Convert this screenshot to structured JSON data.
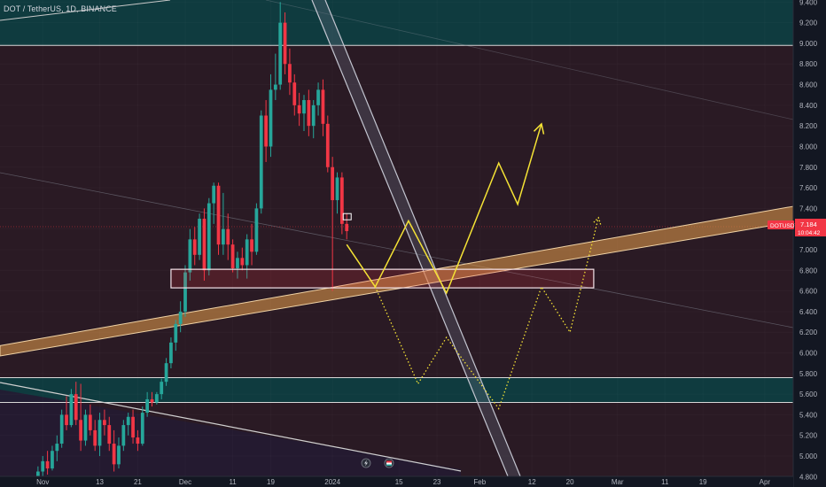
{
  "header": {
    "symbol_title": "DOT / TetherUS, 1D, BINANCE"
  },
  "price_tag": {
    "label": "DOTUSDT",
    "price": "7.184",
    "countdown": "10:04:42",
    "color": "#f23645"
  },
  "colors": {
    "background": "#131722",
    "up": "#26a69a",
    "down": "#f23645",
    "zone_teal": "#0f3b3f",
    "zone_maroon": "#2a1a24",
    "zone_purple": "#241b32",
    "trend_band": "#d9954a",
    "projection": "#f5e335"
  },
  "icons": [
    "lightning-icon",
    "flag-icon"
  ],
  "chart_data": {
    "type": "candlestick",
    "title": "DOT / TetherUS, 1D, BINANCE",
    "y_axis": {
      "position": "right",
      "range": [
        4.7,
        9.42
      ],
      "ticks": [
        "9.400",
        "9.200",
        "9.000",
        "8.800",
        "8.600",
        "8.400",
        "8.200",
        "8.000",
        "7.800",
        "7.600",
        "7.400",
        "7.200",
        "7.000",
        "6.800",
        "6.600",
        "6.400",
        "6.200",
        "6.000",
        "5.800",
        "5.600",
        "5.400",
        "5.200",
        "5.000",
        "4.800"
      ]
    },
    "x_axis": {
      "range": [
        "2023-10-23",
        "2024-04-07"
      ],
      "ticks": [
        {
          "date": "2023-11-01",
          "label": "Nov"
        },
        {
          "date": "2023-11-13",
          "label": "13"
        },
        {
          "date": "2023-11-21",
          "label": "21"
        },
        {
          "date": "2023-12-01",
          "label": "Dec"
        },
        {
          "date": "2023-12-11",
          "label": "11"
        },
        {
          "date": "2023-12-19",
          "label": "19"
        },
        {
          "date": "2024-01-01",
          "label": "2024"
        },
        {
          "date": "2024-01-15",
          "label": "15"
        },
        {
          "date": "2024-01-23",
          "label": "23"
        },
        {
          "date": "2024-02-01",
          "label": "Feb"
        },
        {
          "date": "2024-02-12",
          "label": "12"
        },
        {
          "date": "2024-02-20",
          "label": "20"
        },
        {
          "date": "2024-03-01",
          "label": "Mar"
        },
        {
          "date": "2024-03-11",
          "label": "11"
        },
        {
          "date": "2024-03-19",
          "label": "19"
        },
        {
          "date": "2024-04-01",
          "label": "Apr"
        }
      ]
    },
    "candles_start_date": "2023-10-27",
    "candles": [
      [
        4.62,
        4.68,
        4.58,
        4.66
      ],
      [
        4.66,
        4.7,
        4.6,
        4.64
      ],
      [
        4.64,
        4.72,
        4.62,
        4.7
      ],
      [
        4.7,
        4.78,
        4.66,
        4.74
      ],
      [
        4.74,
        4.9,
        4.7,
        4.85
      ],
      [
        4.85,
        5.0,
        4.8,
        4.95
      ],
      [
        4.95,
        5.05,
        4.82,
        4.88
      ],
      [
        4.88,
        5.1,
        4.86,
        5.05
      ],
      [
        5.05,
        5.2,
        4.95,
        5.12
      ],
      [
        5.12,
        5.45,
        5.08,
        5.4
      ],
      [
        5.4,
        5.58,
        5.25,
        5.3
      ],
      [
        5.3,
        5.65,
        5.28,
        5.6
      ],
      [
        5.6,
        5.72,
        5.3,
        5.35
      ],
      [
        5.35,
        5.7,
        5.05,
        5.15
      ],
      [
        5.15,
        5.45,
        5.1,
        5.4
      ],
      [
        5.4,
        5.5,
        5.2,
        5.25
      ],
      [
        5.25,
        5.35,
        5.05,
        5.1
      ],
      [
        5.1,
        5.42,
        5.0,
        5.35
      ],
      [
        5.35,
        5.45,
        5.2,
        5.3
      ],
      [
        5.3,
        5.38,
        5.05,
        5.12
      ],
      [
        5.12,
        5.25,
        4.85,
        4.92
      ],
      [
        4.92,
        5.18,
        4.88,
        5.1
      ],
      [
        5.1,
        5.35,
        5.05,
        5.3
      ],
      [
        5.3,
        5.42,
        5.2,
        5.38
      ],
      [
        5.38,
        5.45,
        5.12,
        5.18
      ],
      [
        5.18,
        5.25,
        5.05,
        5.12
      ],
      [
        5.12,
        5.48,
        5.1,
        5.42
      ],
      [
        5.42,
        5.62,
        5.38,
        5.55
      ],
      [
        5.55,
        5.62,
        5.48,
        5.52
      ],
      [
        5.52,
        5.62,
        5.5,
        5.6
      ],
      [
        5.6,
        5.75,
        5.55,
        5.72
      ],
      [
        5.72,
        5.95,
        5.68,
        5.9
      ],
      [
        5.9,
        6.15,
        5.85,
        6.1
      ],
      [
        6.1,
        6.32,
        6.02,
        6.28
      ],
      [
        6.28,
        6.5,
        6.2,
        6.4
      ],
      [
        6.4,
        6.85,
        6.35,
        6.78
      ],
      [
        6.78,
        7.2,
        6.7,
        7.1
      ],
      [
        7.1,
        7.22,
        6.85,
        6.95
      ],
      [
        6.95,
        7.35,
        6.9,
        7.3
      ],
      [
        7.3,
        7.4,
        6.7,
        6.8
      ],
      [
        6.8,
        7.5,
        6.75,
        7.45
      ],
      [
        7.45,
        7.65,
        7.25,
        7.62
      ],
      [
        7.62,
        7.65,
        6.95,
        7.05
      ],
      [
        7.05,
        7.55,
        6.95,
        7.2
      ],
      [
        7.2,
        7.35,
        6.9,
        7.05
      ],
      [
        7.05,
        7.1,
        6.78,
        6.82
      ],
      [
        6.82,
        6.98,
        6.72,
        6.92
      ],
      [
        6.92,
        7.02,
        6.8,
        6.85
      ],
      [
        6.85,
        7.15,
        6.72,
        7.1
      ],
      [
        7.1,
        7.25,
        6.85,
        6.98
      ],
      [
        6.98,
        7.45,
        6.95,
        7.4
      ],
      [
        7.4,
        8.35,
        7.35,
        8.3
      ],
      [
        8.3,
        8.45,
        7.85,
        8.0
      ],
      [
        8.0,
        8.7,
        7.9,
        8.55
      ],
      [
        8.55,
        8.9,
        8.45,
        8.6
      ],
      [
        8.6,
        9.4,
        8.55,
        9.2
      ],
      [
        9.2,
        9.3,
        8.7,
        8.8
      ],
      [
        8.8,
        8.95,
        8.5,
        8.62
      ],
      [
        8.62,
        8.7,
        8.3,
        8.4
      ],
      [
        8.4,
        8.52,
        8.2,
        8.32
      ],
      [
        8.32,
        8.5,
        8.15,
        8.45
      ],
      [
        8.45,
        8.55,
        8.1,
        8.2
      ],
      [
        8.2,
        8.45,
        8.08,
        8.4
      ],
      [
        8.4,
        8.62,
        8.3,
        8.55
      ],
      [
        8.55,
        8.65,
        8.1,
        8.22
      ],
      [
        8.22,
        8.3,
        7.75,
        7.8
      ],
      [
        7.8,
        7.9,
        6.6,
        7.48
      ],
      [
        7.48,
        7.75,
        7.35,
        7.7
      ],
      [
        7.7,
        7.75,
        7.15,
        7.25
      ],
      [
        7.25,
        7.35,
        7.1,
        7.18
      ]
    ],
    "zones": [
      {
        "name": "upper-teal-zone",
        "from": 8.98,
        "to": 9.42
      },
      {
        "name": "maroon-zone",
        "from": 5.76,
        "to": 8.98
      },
      {
        "name": "middle-teal-zone",
        "from": 5.52,
        "to": 5.76
      },
      {
        "name": "lower-maroon-zone",
        "from": 4.7,
        "to": 5.52
      },
      {
        "name": "support-box",
        "x_from": "2023-11-28",
        "x_to": "2024-02-25",
        "from": 6.63,
        "to": 6.81
      }
    ],
    "trend_band": {
      "from_date": "2023-10-23",
      "from_price": [
        6.07,
        5.97
      ],
      "to_date": "2024-04-07",
      "to_price": [
        7.42,
        7.27
      ]
    },
    "projection_solid": [
      [
        "2024-01-04",
        7.05
      ],
      [
        "2024-01-10",
        6.64
      ],
      [
        "2024-01-17",
        7.28
      ],
      [
        "2024-01-25",
        6.58
      ],
      [
        "2024-02-05",
        7.84
      ],
      [
        "2024-02-09",
        7.44
      ],
      [
        "2024-02-14",
        8.22
      ]
    ],
    "projection_dotted": [
      [
        "2024-01-10",
        6.64
      ],
      [
        "2024-01-19",
        5.7
      ],
      [
        "2024-01-25",
        6.15
      ],
      [
        "2024-02-05",
        5.46
      ],
      [
        "2024-02-14",
        6.64
      ],
      [
        "2024-02-20",
        6.2
      ],
      [
        "2024-02-26",
        7.31
      ]
    ]
  }
}
